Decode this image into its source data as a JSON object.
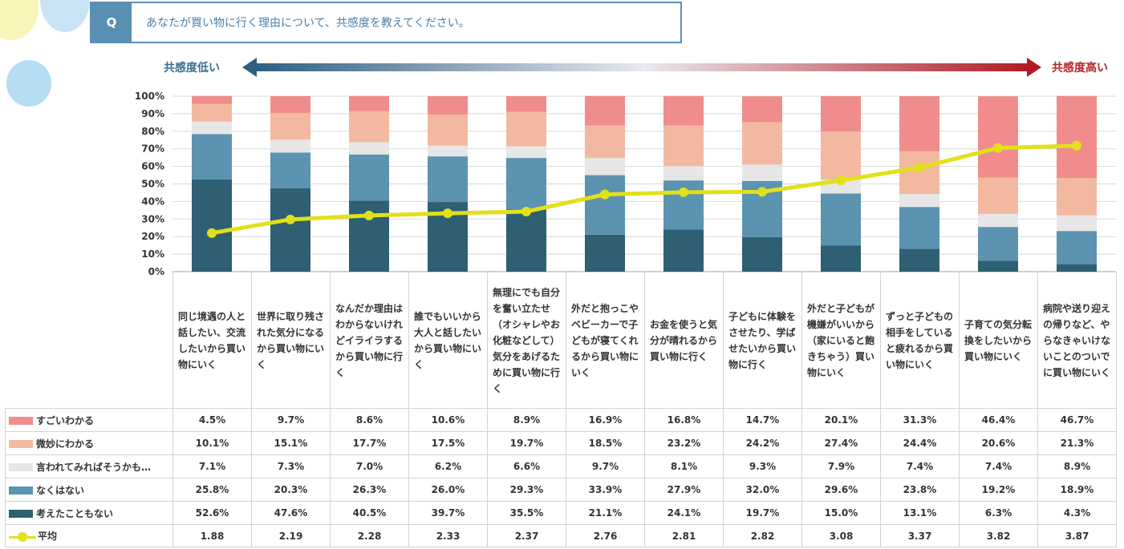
{
  "question": {
    "badge": "Q",
    "text": "あなたが買い物に行く理由について、共感度を教えてください。"
  },
  "scale": {
    "low_label": "共感度低い",
    "high_label": "共感度高い"
  },
  "colors": {
    "very": "#f08c8c",
    "somewhat": "#f3b9a0",
    "maybe": "#e6e6e6",
    "not_none": "#5b93b0",
    "never": "#2e5f73",
    "avg": "#e2e01a"
  },
  "chart_data": {
    "type": "bar",
    "stacked": true,
    "ylim": [
      0,
      100
    ],
    "y_ticks": [
      "0%",
      "10%",
      "20%",
      "30%",
      "40%",
      "50%",
      "60%",
      "70%",
      "80%",
      "90%",
      "100%"
    ],
    "categories": [
      "同じ境遇の人と話したい、交流したいから買い物にいく",
      "世界に取り残された気分になるから買い物にいく",
      "なんだか理由はわからないけれどイライラするから買い物に行く",
      "誰でもいいから大人と話したいから買い物にいく",
      "無理にでも自分を奮い立たせ（オシャレやお化粧などして）気分をあげるために買い物に行く",
      "外だと抱っこやベビーカーで子どもが寝てくれるから買い物にいく",
      "お金を使うと気分が晴れるから買い物に行く",
      "子どもに体験をさせたり、学ばせたいから買い物に行く",
      "外だと子どもが機嫌がいいから（家にいると飽きちゃう）買い物にいく",
      "ずっと子どもの相手をしていると疲れるから買い物にいく",
      "子育ての気分転換をしたいから買い物にいく",
      "病院や送り迎えの帰りなど、やらなきゃいけないことのついでに買い物にいく"
    ],
    "series": [
      {
        "key": "very",
        "name": "すごいわかる",
        "values": [
          4.5,
          9.7,
          8.6,
          10.6,
          8.9,
          16.9,
          16.8,
          14.7,
          20.1,
          31.3,
          46.4,
          46.7
        ],
        "labels": [
          "4.5%",
          "9.7%",
          "8.6%",
          "10.6%",
          "8.9%",
          "16.9%",
          "16.8%",
          "14.7%",
          "20.1%",
          "31.3%",
          "46.4%",
          "46.7%"
        ]
      },
      {
        "key": "somewhat",
        "name": "微妙にわかる",
        "values": [
          10.1,
          15.1,
          17.7,
          17.5,
          19.7,
          18.5,
          23.2,
          24.2,
          27.4,
          24.4,
          20.6,
          21.3
        ],
        "labels": [
          "10.1%",
          "15.1%",
          "17.7%",
          "17.5%",
          "19.7%",
          "18.5%",
          "23.2%",
          "24.2%",
          "27.4%",
          "24.4%",
          "20.6%",
          "21.3%"
        ]
      },
      {
        "key": "maybe",
        "name": "言われてみればそうかも…",
        "values": [
          7.1,
          7.3,
          7.0,
          6.2,
          6.6,
          9.7,
          8.1,
          9.3,
          7.9,
          7.4,
          7.4,
          8.9
        ],
        "labels": [
          "7.1%",
          "7.3%",
          "7.0%",
          "6.2%",
          "6.6%",
          "9.7%",
          "8.1%",
          "9.3%",
          "7.9%",
          "7.4%",
          "7.4%",
          "8.9%"
        ]
      },
      {
        "key": "not_none",
        "name": "なくはない",
        "values": [
          25.8,
          20.3,
          26.3,
          26.0,
          29.3,
          33.9,
          27.9,
          32.0,
          29.6,
          23.8,
          19.2,
          18.9
        ],
        "labels": [
          "25.8%",
          "20.3%",
          "26.3%",
          "26.0%",
          "29.3%",
          "33.9%",
          "27.9%",
          "32.0%",
          "29.6%",
          "23.8%",
          "19.2%",
          "18.9%"
        ]
      },
      {
        "key": "never",
        "name": "考えたこともない",
        "values": [
          52.6,
          47.6,
          40.5,
          39.7,
          35.5,
          21.1,
          24.1,
          19.7,
          15.0,
          13.1,
          6.3,
          4.3
        ],
        "labels": [
          "52.6%",
          "47.6%",
          "40.5%",
          "39.7%",
          "35.5%",
          "21.1%",
          "24.1%",
          "19.7%",
          "15.0%",
          "13.1%",
          "6.3%",
          "4.3%"
        ]
      }
    ],
    "average": {
      "name": "平均",
      "values": [
        1.88,
        2.19,
        2.28,
        2.33,
        2.37,
        2.76,
        2.81,
        2.82,
        3.08,
        3.37,
        3.82,
        3.87
      ],
      "labels": [
        "1.88",
        "2.19",
        "2.28",
        "2.33",
        "2.37",
        "2.76",
        "2.81",
        "2.82",
        "3.08",
        "3.37",
        "3.82",
        "3.87"
      ],
      "scale_min": 1,
      "scale_max": 5
    }
  }
}
